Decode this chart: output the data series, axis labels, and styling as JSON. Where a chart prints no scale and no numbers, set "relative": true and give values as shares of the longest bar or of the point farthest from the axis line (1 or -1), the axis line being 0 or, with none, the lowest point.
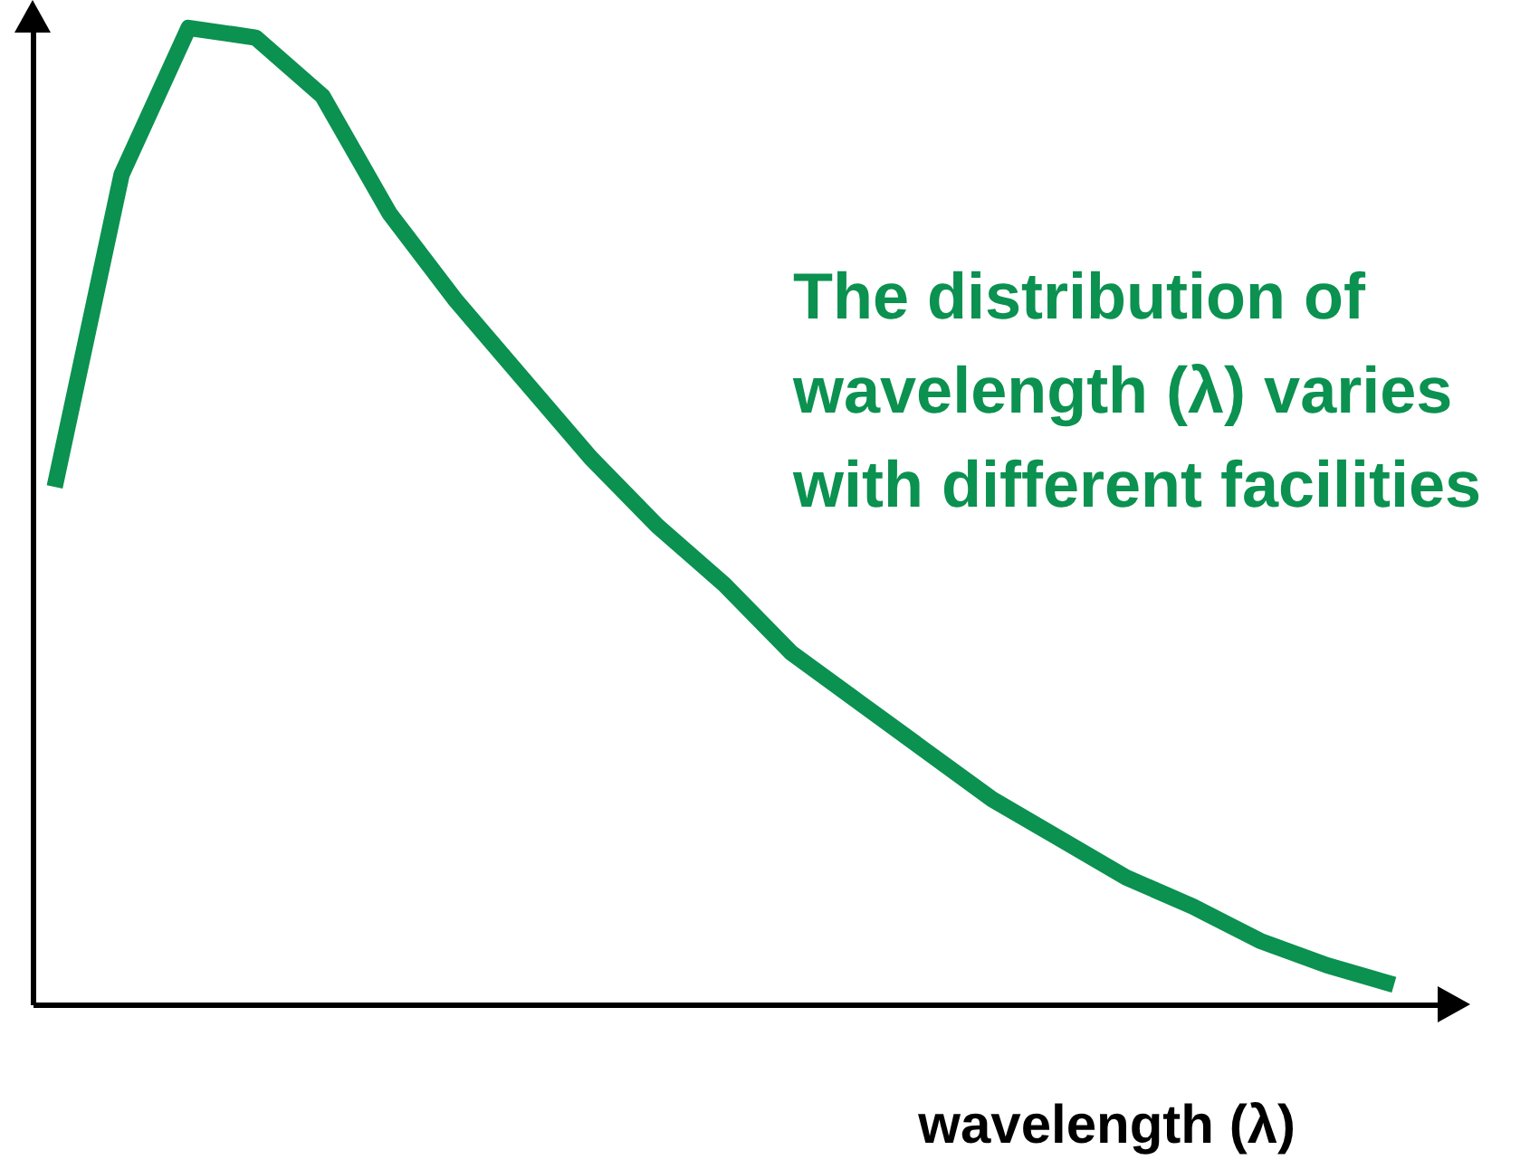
{
  "chart_data": {
    "type": "line",
    "xlabel": "wavelength (λ)",
    "annotations": [
      "The distribution of wavelength (λ) varies with different facilities"
    ],
    "relative": true,
    "categories": [
      null,
      null,
      null,
      null,
      null,
      null,
      null,
      null,
      null,
      null,
      null,
      null,
      null,
      null,
      null,
      null,
      null,
      null,
      null,
      null,
      null
    ],
    "series": [
      {
        "color": "#0b9150",
        "values": [
          0.53,
          0.85,
          1,
          0.99,
          0.93,
          0.81,
          0.72,
          0.64,
          0.56,
          0.49,
          0.43,
          0.36,
          0.31,
          0.26,
          0.21,
          0.17,
          0.13,
          0.1,
          0.065,
          0.04,
          0.02
        ]
      }
    ]
  }
}
